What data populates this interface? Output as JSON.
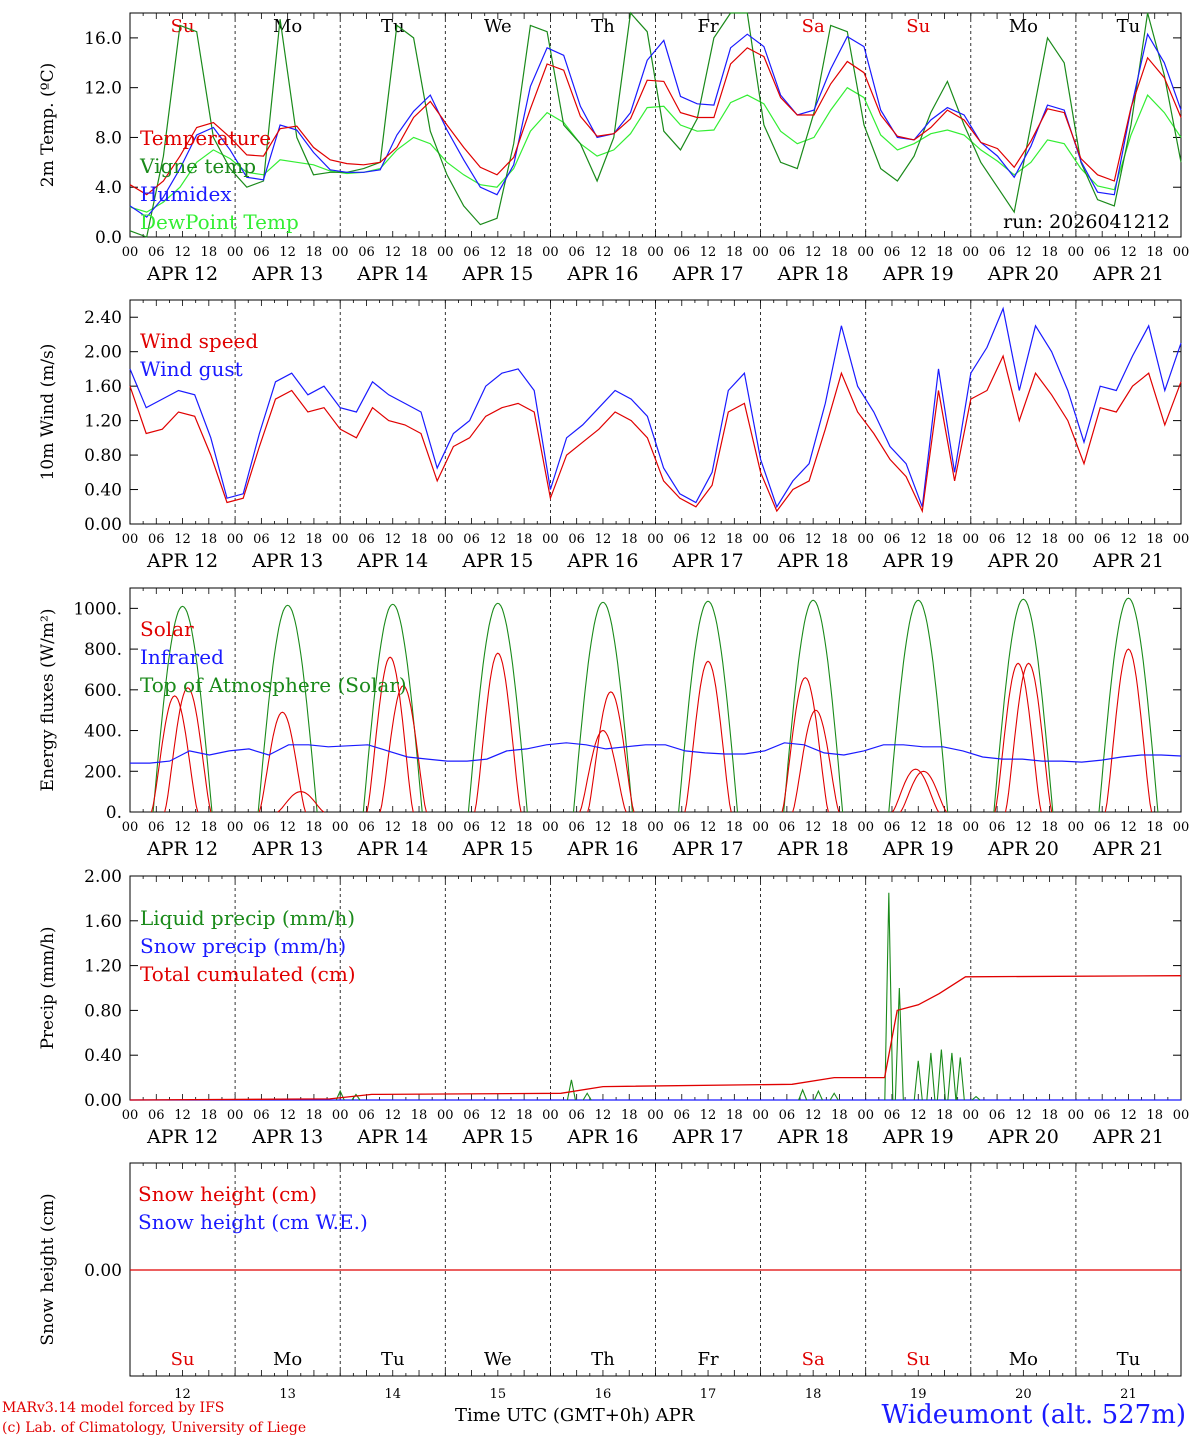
{
  "axis_day_names": [
    "Su",
    "Mo",
    "Tu",
    "We",
    "Th",
    "Fr",
    "Sa",
    "Su",
    "Mo",
    "Tu"
  ],
  "axis_day_colors": [
    "#e00000",
    "#000000",
    "#000000",
    "#000000",
    "#000000",
    "#000000",
    "#e00000",
    "#e00000",
    "#000000",
    "#000000"
  ],
  "axis_hour_labels": [
    "00",
    "06",
    "12",
    "18"
  ],
  "axis_date_labels": [
    "APR 12",
    "APR 13",
    "APR 14",
    "APR 15",
    "APR 16",
    "APR 17",
    "APR 18",
    "APR 19",
    "APR 20",
    "APR 21"
  ],
  "axis_day_numbers": [
    "12",
    "13",
    "14",
    "15",
    "16",
    "17",
    "18",
    "19",
    "20",
    "21"
  ],
  "footer": {
    "credit_line1": "MARv3.14 model forced by IFS",
    "credit_line2": "(c) Lab. of Climatology, University of Liege",
    "x_title": "Time UTC (GMT+0h) APR",
    "station": "Wideumont (alt. 527m)"
  },
  "colors": {
    "red": "#e00000",
    "blue": "#1a1aff",
    "green": "#1a8a1a",
    "lightgreen": "#33ee33",
    "grid": "#000000"
  },
  "chart_data": [
    {
      "type": "line",
      "ylabel": "2m Temp. (ºC)",
      "ylim": [
        0,
        18
      ],
      "yticks": [
        "0.0",
        "4.0",
        "8.0",
        "12.0",
        "16.0"
      ],
      "run_label": "run: 2026041212",
      "x_days": 10,
      "series": [
        {
          "name": "Temperature",
          "color_key": "red",
          "values": [
            4.2,
            3.4,
            4.5,
            6.5,
            8.8,
            9.2,
            8.0,
            6.6,
            6.5,
            8.7,
            8.9,
            7.2,
            6.2,
            5.9,
            5.8,
            6.0,
            7.2,
            9.6,
            10.9,
            9.0,
            7.2,
            5.6,
            5.0,
            6.4,
            10.3,
            13.9,
            13.4,
            9.7,
            8.1,
            8.3,
            9.5,
            12.6,
            12.5,
            10.0,
            9.6,
            9.6,
            13.9,
            15.2,
            14.5,
            11.2,
            9.8,
            9.8,
            12.3,
            14.1,
            13.2,
            9.8,
            8.1,
            7.8,
            8.8,
            10.2,
            9.4,
            7.6,
            7.1,
            5.6,
            7.7,
            10.3,
            10.0,
            6.3,
            5.0,
            4.5,
            10.4,
            14.4,
            12.8,
            9.6
          ]
        },
        {
          "name": "Vigne temp",
          "color_key": "green",
          "values": [
            0.5,
            0.0,
            6.5,
            17.0,
            16.5,
            8.0,
            5.5,
            4.0,
            4.5,
            17.5,
            8.0,
            5.0,
            5.2,
            5.2,
            5.5,
            6.0,
            17.0,
            16.0,
            8.5,
            5.0,
            2.5,
            1.0,
            1.5,
            7.5,
            17.0,
            16.5,
            9.0,
            7.5,
            4.5,
            8.0,
            18.0,
            16.5,
            8.5,
            7.0,
            9.5,
            16.0,
            18.0,
            18.0,
            9.0,
            6.0,
            5.5,
            10.0,
            17.0,
            16.5,
            9.0,
            5.5,
            4.5,
            6.5,
            10.0,
            12.5,
            9.0,
            6.0,
            4.0,
            2.0,
            9.0,
            16.0,
            14.0,
            6.0,
            3.0,
            2.5,
            9.0,
            18.0,
            13.0,
            6.0
          ]
        },
        {
          "name": "Humidex",
          "color_key": "blue",
          "values": [
            2.5,
            1.6,
            3.2,
            5.5,
            8.2,
            8.8,
            7.0,
            4.8,
            4.6,
            9.0,
            8.6,
            6.8,
            5.4,
            5.2,
            5.2,
            5.4,
            8.2,
            10.1,
            11.4,
            8.6,
            6.2,
            4.0,
            3.4,
            5.8,
            12.1,
            15.2,
            14.6,
            10.5,
            8.0,
            8.3,
            10.0,
            14.2,
            15.8,
            11.3,
            10.7,
            10.6,
            15.2,
            16.3,
            15.3,
            11.4,
            9.8,
            10.2,
            13.5,
            16.1,
            15.3,
            10.2,
            8.0,
            7.8,
            9.4,
            10.4,
            9.8,
            7.6,
            6.5,
            4.8,
            7.3,
            10.6,
            10.2,
            6.1,
            3.6,
            3.4,
            10.3,
            16.3,
            14.0,
            10.2
          ]
        },
        {
          "name": "DewPoint Temp",
          "color_key": "lightgreen",
          "values": [
            2.4,
            2.0,
            2.8,
            4.0,
            6.0,
            7.0,
            6.3,
            5.2,
            5.0,
            6.2,
            6.0,
            5.8,
            5.3,
            5.1,
            5.2,
            5.5,
            7.0,
            8.0,
            7.5,
            6.0,
            5.0,
            4.2,
            4.0,
            5.5,
            8.5,
            10.0,
            9.2,
            7.5,
            6.5,
            7.0,
            8.3,
            10.4,
            10.5,
            9.0,
            8.5,
            8.6,
            10.8,
            11.4,
            10.7,
            8.5,
            7.5,
            8.0,
            10.2,
            12.0,
            11.2,
            8.2,
            7.0,
            7.5,
            8.3,
            8.6,
            8.2,
            7.0,
            6.1,
            5.0,
            6.0,
            7.8,
            7.5,
            5.5,
            4.1,
            3.8,
            8.2,
            11.4,
            10.0,
            8.0
          ]
        }
      ]
    },
    {
      "type": "line",
      "ylabel": "10m Wind (m/s)",
      "ylim": [
        0,
        2.6
      ],
      "yticks": [
        "0.00",
        "0.40",
        "0.80",
        "1.20",
        "1.60",
        "2.00",
        "2.40"
      ],
      "x_days": 10,
      "series": [
        {
          "name": "Wind speed",
          "color_key": "red",
          "values": [
            1.6,
            1.05,
            1.1,
            1.3,
            1.25,
            0.8,
            0.25,
            0.3,
            0.9,
            1.45,
            1.55,
            1.3,
            1.35,
            1.1,
            1.0,
            1.35,
            1.2,
            1.15,
            1.05,
            0.5,
            0.9,
            1.0,
            1.25,
            1.35,
            1.4,
            1.3,
            0.3,
            0.8,
            0.95,
            1.1,
            1.3,
            1.2,
            1.0,
            0.5,
            0.3,
            0.2,
            0.45,
            1.3,
            1.4,
            0.6,
            0.15,
            0.4,
            0.5,
            1.1,
            1.75,
            1.3,
            1.05,
            0.75,
            0.55,
            0.15,
            1.55,
            0.5,
            1.45,
            1.55,
            1.95,
            1.2,
            1.75,
            1.5,
            1.2,
            0.7,
            1.35,
            1.3,
            1.6,
            1.75,
            1.15,
            1.65
          ]
        },
        {
          "name": "Wind gust",
          "color_key": "blue",
          "values": [
            1.8,
            1.35,
            1.45,
            1.55,
            1.5,
            1.0,
            0.3,
            0.35,
            1.05,
            1.65,
            1.75,
            1.5,
            1.6,
            1.35,
            1.3,
            1.65,
            1.5,
            1.4,
            1.3,
            0.65,
            1.05,
            1.2,
            1.6,
            1.75,
            1.8,
            1.55,
            0.4,
            1.0,
            1.15,
            1.35,
            1.55,
            1.45,
            1.25,
            0.65,
            0.35,
            0.25,
            0.6,
            1.55,
            1.75,
            0.75,
            0.2,
            0.5,
            0.7,
            1.4,
            2.3,
            1.6,
            1.3,
            0.9,
            0.7,
            0.2,
            1.8,
            0.6,
            1.75,
            2.05,
            2.5,
            1.55,
            2.3,
            2.0,
            1.55,
            0.95,
            1.6,
            1.55,
            1.95,
            2.3,
            1.55,
            2.1
          ]
        }
      ]
    },
    {
      "type": "line",
      "ylabel": "Energy fluxes (W/m²)",
      "ylim": [
        0,
        1100
      ],
      "yticks": [
        "0.",
        "200.",
        "400.",
        "600.",
        "800.",
        "1000."
      ],
      "x_days": 10,
      "series": [
        {
          "name": "Solar",
          "color_key": "red",
          "peaks": [
            [
              -0.15,
              570
            ],
            [
              0.1,
              610
            ],
            [
              -0.1,
              490
            ],
            [
              0.25,
              100
            ],
            [
              -0.05,
              760
            ],
            [
              0.2,
              620
            ],
            [
              0.0,
              780
            ],
            [
              0.0,
              400
            ],
            [
              0.15,
              590
            ],
            [
              0.0,
              740
            ],
            [
              -0.15,
              660
            ],
            [
              0.05,
              500
            ],
            [
              -0.05,
              210
            ],
            [
              0.1,
              200
            ],
            [
              -0.1,
              730
            ],
            [
              0.1,
              730
            ],
            [
              0.0,
              800
            ]
          ]
        },
        {
          "name": "Infrared",
          "color_key": "blue",
          "values": [
            240,
            240,
            250,
            300,
            280,
            300,
            310,
            280,
            330,
            330,
            320,
            325,
            330,
            300,
            270,
            260,
            250,
            250,
            260,
            300,
            310,
            330,
            340,
            330,
            310,
            320,
            330,
            330,
            300,
            290,
            285,
            285,
            300,
            340,
            330,
            290,
            280,
            300,
            330,
            330,
            320,
            320,
            300,
            270,
            260,
            260,
            250,
            250,
            245,
            255,
            270,
            280,
            280,
            275
          ]
        },
        {
          "name": "Top of Atmosphere (Solar)",
          "color_key": "green",
          "peaks": [
            [
              0,
              1010
            ],
            [
              0,
              1015
            ],
            [
              0,
              1020
            ],
            [
              0,
              1025
            ],
            [
              0,
              1030
            ],
            [
              0,
              1035
            ],
            [
              0,
              1040
            ],
            [
              0,
              1040
            ],
            [
              0,
              1045
            ],
            [
              0,
              1050
            ]
          ]
        }
      ]
    },
    {
      "type": "line",
      "ylabel": "Precip (mm/h)",
      "ylim": [
        0,
        2.0
      ],
      "yticks": [
        "0.00",
        "0.40",
        "0.80",
        "1.20",
        "1.60",
        "2.00"
      ],
      "x_days": 10,
      "series": [
        {
          "name": "Liquid precip (mm/h)",
          "color_key": "green",
          "events": [
            [
              2.0,
              0.08
            ],
            [
              2.15,
              0.05
            ],
            [
              4.2,
              0.18
            ],
            [
              4.35,
              0.06
            ],
            [
              6.4,
              0.09
            ],
            [
              6.55,
              0.08
            ],
            [
              6.7,
              0.06
            ],
            [
              7.22,
              1.85
            ],
            [
              7.32,
              1.0
            ],
            [
              7.5,
              0.35
            ],
            [
              7.62,
              0.42
            ],
            [
              7.72,
              0.45
            ],
            [
              7.82,
              0.42
            ],
            [
              7.9,
              0.38
            ],
            [
              8.05,
              0.03
            ]
          ]
        },
        {
          "name": "Snow precip (mm/h)",
          "color_key": "blue",
          "values": [
            0
          ]
        },
        {
          "name": "Total cumulated (cm)",
          "color_key": "red",
          "steps": [
            [
              0,
              0
            ],
            [
              1.9,
              0.01
            ],
            [
              2.3,
              0.05
            ],
            [
              4.1,
              0.06
            ],
            [
              4.5,
              0.12
            ],
            [
              6.3,
              0.14
            ],
            [
              6.7,
              0.2
            ],
            [
              7.18,
              0.2
            ],
            [
              7.3,
              0.8
            ],
            [
              7.5,
              0.85
            ],
            [
              7.7,
              0.95
            ],
            [
              7.95,
              1.1
            ],
            [
              10,
              1.11
            ]
          ]
        }
      ]
    },
    {
      "type": "line",
      "ylabel": "Snow height (cm)",
      "yticks": [
        "0.00"
      ],
      "x_days": 10,
      "series": [
        {
          "name": "Snow height (cm)",
          "color_key": "red",
          "values": [
            0,
            0
          ]
        },
        {
          "name": "Snow height (cm W.E.)",
          "color_key": "blue",
          "values": [
            0,
            0
          ]
        }
      ]
    }
  ]
}
